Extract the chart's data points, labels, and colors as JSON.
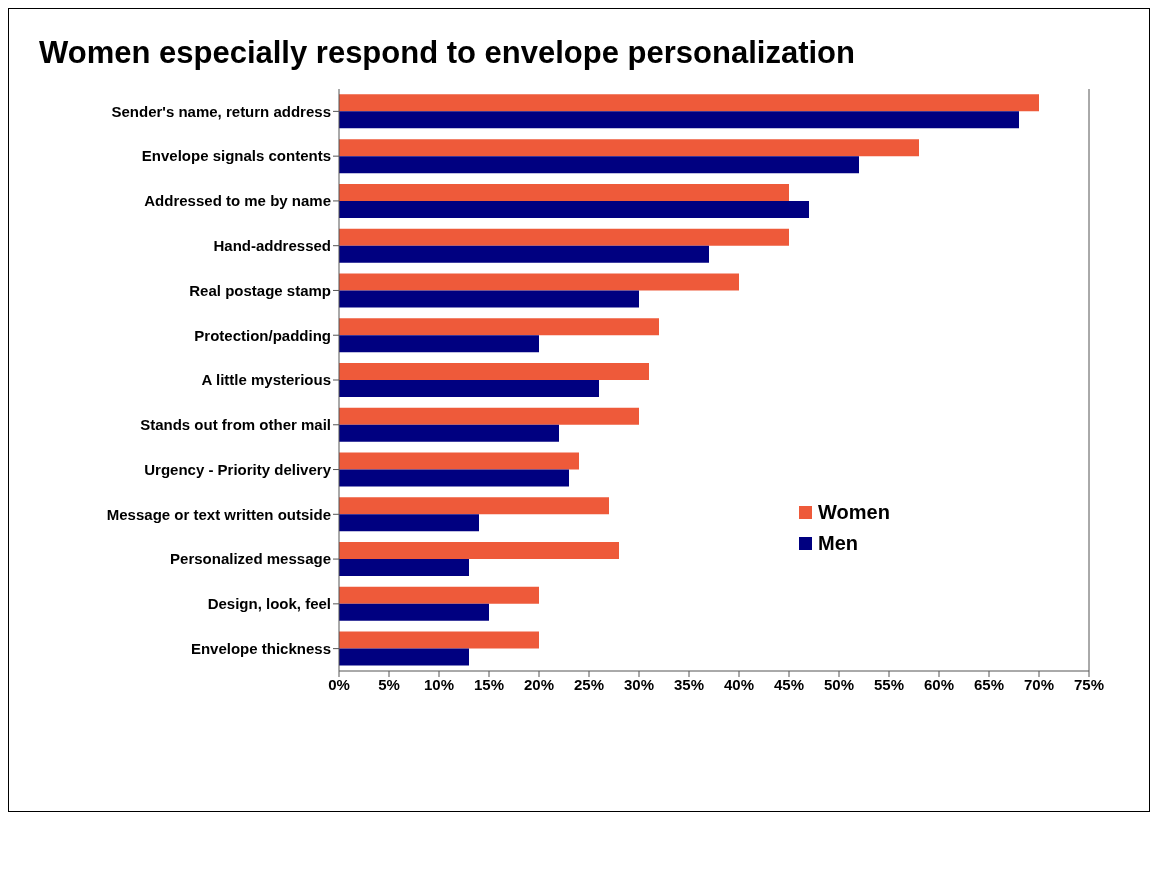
{
  "chart_data": {
    "type": "bar",
    "orientation": "horizontal",
    "title": "Women especially respond to envelope personalization",
    "categories": [
      "Sender's name, return address",
      "Envelope signals contents",
      "Addressed to me by name",
      "Hand-addressed",
      "Real postage stamp",
      "Protection/padding",
      "A little mysterious",
      "Stands out from other mail",
      "Urgency - Priority delivery",
      "Message or text written outside",
      "Personalized message",
      "Design, look, feel",
      "Envelope thickness"
    ],
    "series": [
      {
        "name": "Women",
        "color": "#ee5a3a",
        "values": [
          70,
          58,
          45,
          45,
          40,
          32,
          31,
          30,
          24,
          27,
          28,
          20,
          20
        ]
      },
      {
        "name": "Men",
        "color": "#000080",
        "values": [
          68,
          52,
          47,
          37,
          30,
          20,
          26,
          22,
          23,
          14,
          13,
          15,
          13
        ]
      }
    ],
    "xlim": [
      0,
      75
    ],
    "xticks": [
      {
        "value": 0,
        "label": "0%"
      },
      {
        "value": 5,
        "label": "5%"
      },
      {
        "value": 10,
        "label": "10%"
      },
      {
        "value": 15,
        "label": "15%"
      },
      {
        "value": 20,
        "label": "20%"
      },
      {
        "value": 25,
        "label": "25%"
      },
      {
        "value": 30,
        "label": "30%"
      },
      {
        "value": 35,
        "label": "35%"
      },
      {
        "value": 40,
        "label": "40%"
      },
      {
        "value": 45,
        "label": "45%"
      },
      {
        "value": 50,
        "label": "50%"
      },
      {
        "value": 55,
        "label": "55%"
      },
      {
        "value": 60,
        "label": "60%"
      },
      {
        "value": 65,
        "label": "65%"
      },
      {
        "value": 70,
        "label": "70%"
      },
      {
        "value": 75,
        "label": "75%"
      }
    ],
    "grid": false,
    "legend": "right"
  }
}
